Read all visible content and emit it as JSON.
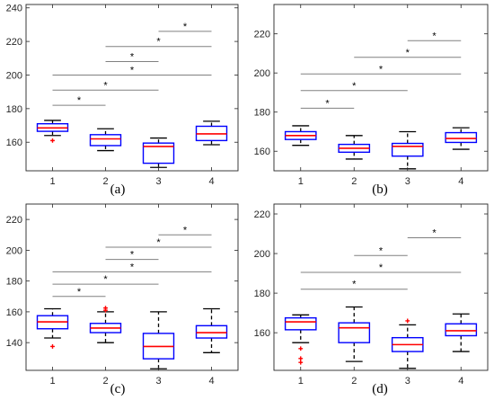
{
  "figure": {
    "colors": {
      "box": "#0000ff",
      "median": "#ff0000",
      "outlier": "#ff0000",
      "whisker": "#000000",
      "bracket": "#808080",
      "axis": "#262626"
    }
  },
  "chart_data": [
    {
      "type": "box",
      "panel_label": "(a)",
      "categories": [
        "1",
        "2",
        "3",
        "4"
      ],
      "ylim": [
        143,
        242
      ],
      "yticks": [
        160,
        180,
        200,
        220,
        240
      ],
      "boxes": [
        {
          "q1": 166.5,
          "median": 168.5,
          "q3": 171,
          "wlo": 164,
          "whi": 173,
          "outliers": [
            161
          ]
        },
        {
          "q1": 158,
          "median": 162,
          "q3": 164.5,
          "wlo": 155,
          "whi": 168,
          "outliers": []
        },
        {
          "q1": 147.5,
          "median": 157.5,
          "q3": 159.5,
          "wlo": 145,
          "whi": 162.5,
          "outliers": []
        },
        {
          "q1": 161,
          "median": 165,
          "q3": 169.5,
          "wlo": 158.5,
          "whi": 172.5,
          "outliers": []
        }
      ],
      "significance": [
        {
          "from": "1",
          "to": "2",
          "y": 182,
          "label": "*"
        },
        {
          "from": "1",
          "to": "3",
          "y": 191,
          "label": "*"
        },
        {
          "from": "1",
          "to": "4",
          "y": 200,
          "label": "*"
        },
        {
          "from": "2",
          "to": "3",
          "y": 208,
          "label": "*"
        },
        {
          "from": "2",
          "to": "4",
          "y": 217,
          "label": "*"
        },
        {
          "from": "3",
          "to": "4",
          "y": 226,
          "label": "*"
        }
      ]
    },
    {
      "type": "box",
      "panel_label": "(b)",
      "categories": [
        "1",
        "2",
        "3",
        "4"
      ],
      "ylim": [
        150,
        235
      ],
      "yticks": [
        160,
        180,
        200,
        220
      ],
      "boxes": [
        {
          "q1": 166,
          "median": 168,
          "q3": 170,
          "wlo": 163,
          "whi": 173,
          "outliers": []
        },
        {
          "q1": 159.5,
          "median": 161.5,
          "q3": 163.5,
          "wlo": 156,
          "whi": 168,
          "outliers": []
        },
        {
          "q1": 157.5,
          "median": 162.5,
          "q3": 164,
          "wlo": 151,
          "whi": 170,
          "outliers": []
        },
        {
          "q1": 164.5,
          "median": 166.5,
          "q3": 169.5,
          "wlo": 161,
          "whi": 172,
          "outliers": []
        }
      ],
      "significance": [
        {
          "from": "1",
          "to": "2",
          "y": 182,
          "label": "*"
        },
        {
          "from": "1",
          "to": "3",
          "y": 191,
          "label": "*"
        },
        {
          "from": "1",
          "to": "4",
          "y": 199.5,
          "label": "*"
        },
        {
          "from": "2",
          "to": "4",
          "y": 208,
          "label": "*"
        },
        {
          "from": "3",
          "to": "4",
          "y": 216.5,
          "label": "*"
        }
      ]
    },
    {
      "type": "box",
      "panel_label": "(c)",
      "categories": [
        "1",
        "2",
        "3",
        "4"
      ],
      "ylim": [
        122,
        230
      ],
      "yticks": [
        140,
        160,
        180,
        200,
        220
      ],
      "boxes": [
        {
          "q1": 149,
          "median": 153.5,
          "q3": 157.5,
          "wlo": 143,
          "whi": 162,
          "outliers": [
            137.5
          ]
        },
        {
          "q1": 146.5,
          "median": 149.5,
          "q3": 152.5,
          "wlo": 140,
          "whi": 160,
          "outliers": [
            161,
            162.5
          ]
        },
        {
          "q1": 129.5,
          "median": 137.5,
          "q3": 146,
          "wlo": 123,
          "whi": 160,
          "outliers": []
        },
        {
          "q1": 143,
          "median": 146.5,
          "q3": 151,
          "wlo": 133.5,
          "whi": 162,
          "outliers": []
        }
      ],
      "significance": [
        {
          "from": "1",
          "to": "2",
          "y": 170,
          "label": "*"
        },
        {
          "from": "1",
          "to": "3",
          "y": 178,
          "label": "*"
        },
        {
          "from": "1",
          "to": "4",
          "y": 186,
          "label": "*"
        },
        {
          "from": "2",
          "to": "3",
          "y": 194,
          "label": "*"
        },
        {
          "from": "2",
          "to": "4",
          "y": 202,
          "label": "*"
        },
        {
          "from": "3",
          "to": "4",
          "y": 210,
          "label": "*"
        }
      ]
    },
    {
      "type": "box",
      "panel_label": "(d)",
      "categories": [
        "1",
        "2",
        "3",
        "4"
      ],
      "ylim": [
        141,
        225
      ],
      "yticks": [
        160,
        180,
        200,
        220
      ],
      "boxes": [
        {
          "q1": 161.5,
          "median": 165.5,
          "q3": 167.5,
          "wlo": 155,
          "whi": 169,
          "outliers": [
            152,
            147,
            145
          ]
        },
        {
          "q1": 155,
          "median": 162.5,
          "q3": 165,
          "wlo": 145.5,
          "whi": 173,
          "outliers": []
        },
        {
          "q1": 150.5,
          "median": 154,
          "q3": 157.5,
          "wlo": 142,
          "whi": 164,
          "outliers": [
            166
          ]
        },
        {
          "q1": 158.5,
          "median": 161,
          "q3": 164.5,
          "wlo": 150.5,
          "whi": 169.5,
          "outliers": []
        }
      ],
      "significance": [
        {
          "from": "1",
          "to": "3",
          "y": 182,
          "label": "*"
        },
        {
          "from": "1",
          "to": "4",
          "y": 190.5,
          "label": "*"
        },
        {
          "from": "2",
          "to": "3",
          "y": 199,
          "label": "*"
        },
        {
          "from": "3",
          "to": "4",
          "y": 208,
          "label": "*"
        }
      ]
    }
  ]
}
